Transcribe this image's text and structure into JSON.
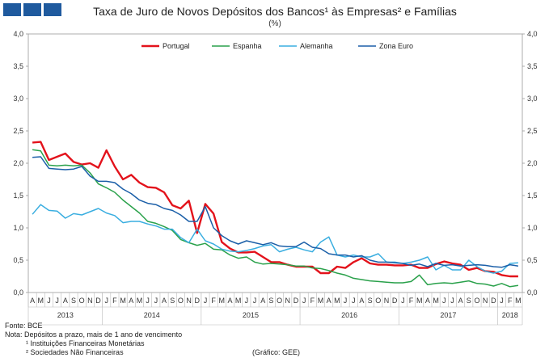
{
  "header": {
    "title": "Taxa de Juro de Novos Depósitos dos Bancos¹ às Empresas² e Famílias",
    "unit": "(%)"
  },
  "footer": {
    "source": "Fonte: BCE",
    "note": "Nota: Depósitos a prazo, mais de 1 ano de vencimento",
    "footnote1": "¹ Instituições Financeiras Monetárias",
    "footnote2": "² Sociedades Não Financeiras",
    "credit": "(Gráfico: GEE)"
  },
  "chart_data": {
    "type": "line",
    "title": "Taxa de Juro de Novos Depósitos dos Bancos¹ às Empresas² e Famílias",
    "ylabel": "(%)",
    "ylim": [
      0,
      4
    ],
    "yticks": [
      "0,0",
      "0,5",
      "1,0",
      "1,5",
      "2,0",
      "2,5",
      "3,0",
      "3,5",
      "4,0"
    ],
    "month_labels": [
      "A",
      "M",
      "J",
      "J",
      "A",
      "S",
      "O",
      "N",
      "D",
      "J",
      "F",
      "M",
      "A",
      "M",
      "J",
      "J",
      "A",
      "S",
      "O",
      "N",
      "D",
      "J",
      "F",
      "M",
      "A",
      "M",
      "J",
      "J",
      "A",
      "S",
      "O",
      "N",
      "D",
      "J",
      "F",
      "M",
      "A",
      "M",
      "J",
      "J",
      "A",
      "S",
      "O",
      "N",
      "D",
      "J",
      "F",
      "M",
      "A",
      "M",
      "J",
      "J",
      "A",
      "S",
      "O",
      "N",
      "D",
      "J",
      "F",
      "M"
    ],
    "years": [
      {
        "label": "2013",
        "start": 0,
        "end": 8
      },
      {
        "label": "2014",
        "start": 9,
        "end": 20
      },
      {
        "label": "2015",
        "start": 21,
        "end": 32
      },
      {
        "label": "2016",
        "start": 33,
        "end": 44
      },
      {
        "label": "2017",
        "start": 45,
        "end": 56
      },
      {
        "label": "2018",
        "start": 57,
        "end": 59
      }
    ],
    "series": [
      {
        "name": "Portugal",
        "color": "#e3121b",
        "values": [
          2.32,
          2.33,
          2.05,
          2.1,
          2.15,
          2.02,
          1.98,
          2.0,
          1.93,
          2.2,
          1.95,
          1.75,
          1.82,
          1.7,
          1.63,
          1.62,
          1.55,
          1.35,
          1.3,
          1.42,
          0.92,
          1.37,
          1.22,
          0.78,
          0.68,
          0.62,
          0.62,
          0.63,
          0.55,
          0.47,
          0.47,
          0.43,
          0.4,
          0.4,
          0.4,
          0.3,
          0.3,
          0.4,
          0.38,
          0.47,
          0.53,
          0.45,
          0.43,
          0.43,
          0.42,
          0.42,
          0.43,
          0.38,
          0.38,
          0.44,
          0.48,
          0.45,
          0.43,
          0.35,
          0.38,
          0.33,
          0.32,
          0.27,
          0.25,
          0.25
        ]
      },
      {
        "name": "Espanha",
        "color": "#2aa14b",
        "values": [
          2.21,
          2.19,
          1.97,
          1.96,
          1.97,
          1.96,
          1.97,
          1.85,
          1.68,
          1.62,
          1.55,
          1.43,
          1.33,
          1.23,
          1.1,
          1.07,
          1.02,
          0.96,
          0.82,
          0.77,
          0.73,
          0.76,
          0.67,
          0.66,
          0.58,
          0.53,
          0.55,
          0.47,
          0.44,
          0.45,
          0.44,
          0.43,
          0.41,
          0.41,
          0.38,
          0.37,
          0.34,
          0.3,
          0.27,
          0.22,
          0.2,
          0.18,
          0.17,
          0.16,
          0.15,
          0.15,
          0.17,
          0.27,
          0.12,
          0.14,
          0.15,
          0.14,
          0.16,
          0.18,
          0.14,
          0.13,
          0.1,
          0.14,
          0.09,
          0.11
        ]
      },
      {
        "name": "Alemanha",
        "color": "#3aaee0",
        "values": [
          1.21,
          1.36,
          1.27,
          1.26,
          1.15,
          1.22,
          1.2,
          1.25,
          1.3,
          1.23,
          1.19,
          1.08,
          1.1,
          1.1,
          1.06,
          1.03,
          0.98,
          0.98,
          0.85,
          0.77,
          0.98,
          0.8,
          0.75,
          0.67,
          0.64,
          0.63,
          0.65,
          0.68,
          0.72,
          0.74,
          0.63,
          0.67,
          0.7,
          0.66,
          0.63,
          0.78,
          0.86,
          0.58,
          0.55,
          0.58,
          0.55,
          0.55,
          0.6,
          0.47,
          0.47,
          0.45,
          0.47,
          0.5,
          0.55,
          0.35,
          0.42,
          0.35,
          0.35,
          0.5,
          0.4,
          0.33,
          0.3,
          0.33,
          0.45,
          0.46
        ]
      },
      {
        "name": "Zona Euro",
        "color": "#1b5fa8",
        "values": [
          2.09,
          2.1,
          1.92,
          1.91,
          1.9,
          1.91,
          1.95,
          1.8,
          1.72,
          1.72,
          1.7,
          1.6,
          1.53,
          1.43,
          1.38,
          1.36,
          1.3,
          1.27,
          1.2,
          1.1,
          1.1,
          1.33,
          1.0,
          0.88,
          0.8,
          0.75,
          0.8,
          0.77,
          0.74,
          0.77,
          0.72,
          0.71,
          0.71,
          0.78,
          0.7,
          0.68,
          0.6,
          0.58,
          0.58,
          0.55,
          0.57,
          0.5,
          0.47,
          0.47,
          0.46,
          0.45,
          0.42,
          0.44,
          0.4,
          0.45,
          0.42,
          0.43,
          0.41,
          0.42,
          0.43,
          0.42,
          0.4,
          0.39,
          0.43,
          0.41
        ]
      }
    ]
  }
}
